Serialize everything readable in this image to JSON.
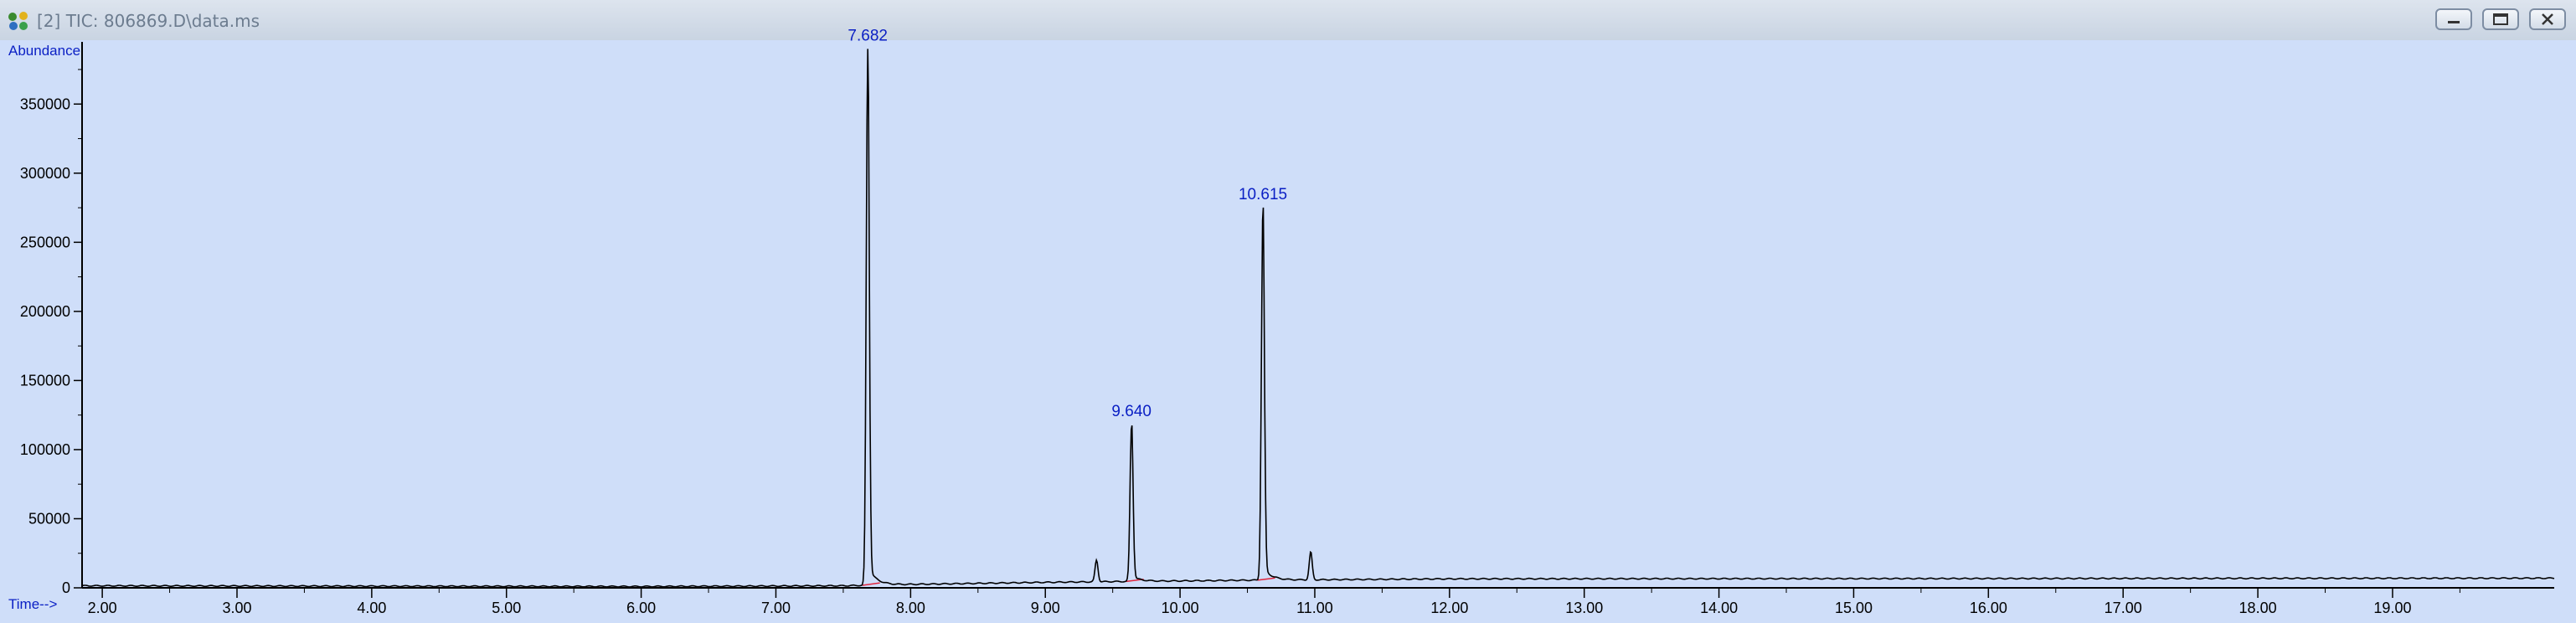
{
  "window": {
    "title": "[2] TIC: 806869.D\\data.ms",
    "buttons": [
      "minimize",
      "restore",
      "close"
    ]
  },
  "icons": {
    "app": "chromatogram-app-icon",
    "minimize": "minimize-icon",
    "restore": "restore-icon",
    "close": "close-icon"
  },
  "colors": {
    "plot_background": "#cfdef9",
    "trace": "#000000",
    "label_blue": "#0a1fc4",
    "baseline_marker": "#e0253c"
  },
  "chart_data": {
    "type": "line",
    "ylabel": "Abundance",
    "xlabel": "Time-->",
    "xlim": [
      1.85,
      20.2
    ],
    "ylim": [
      0,
      395000
    ],
    "xticks": [
      "2.00",
      "3.00",
      "4.00",
      "5.00",
      "6.00",
      "7.00",
      "8.00",
      "9.00",
      "10.00",
      "11.00",
      "12.00",
      "13.00",
      "14.00",
      "15.00",
      "16.00",
      "17.00",
      "18.00",
      "19.00"
    ],
    "yticks": [
      "0",
      "50000",
      "100000",
      "150000",
      "200000",
      "250000",
      "300000",
      "350000"
    ],
    "peaks": [
      {
        "label": "7.682",
        "rt": 7.682,
        "abundance": 390000
      },
      {
        "label": "9.640",
        "rt": 9.64,
        "abundance": 118000
      },
      {
        "label": "10.615",
        "rt": 10.615,
        "abundance": 275000
      }
    ],
    "minor_peaks": [
      {
        "rt": 9.38,
        "abundance": 20000
      },
      {
        "rt": 10.97,
        "abundance": 26000
      }
    ],
    "baseline": [
      {
        "rt": 1.85,
        "abundance": 1500
      },
      {
        "rt": 6.0,
        "abundance": 1000
      },
      {
        "rt": 7.5,
        "abundance": 1500
      },
      {
        "rt": 8.0,
        "abundance": 2500
      },
      {
        "rt": 9.0,
        "abundance": 4000
      },
      {
        "rt": 10.5,
        "abundance": 5500
      },
      {
        "rt": 12.0,
        "abundance": 6500
      },
      {
        "rt": 20.2,
        "abundance": 7000
      }
    ],
    "grid": false,
    "legend": "none"
  }
}
